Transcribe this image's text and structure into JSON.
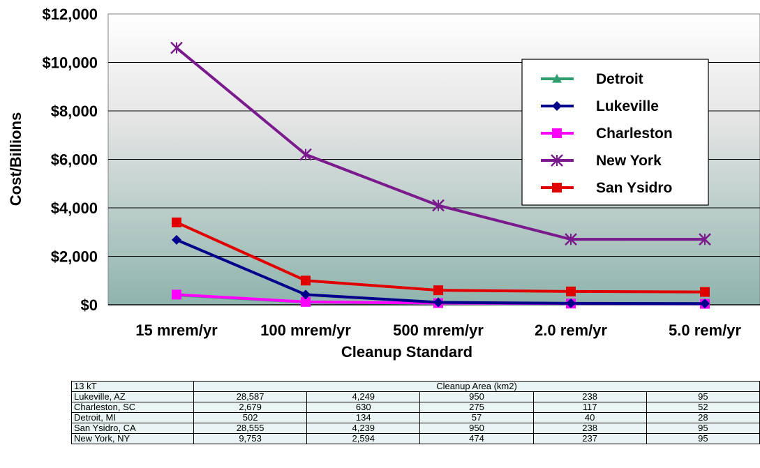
{
  "chart_data": {
    "type": "line",
    "title": "",
    "xlabel": "Cleanup Standard",
    "ylabel": "Cost/Billions",
    "ylim": [
      0,
      12000
    ],
    "yticks": [
      0,
      2000,
      4000,
      6000,
      8000,
      10000,
      12000
    ],
    "ytick_labels": [
      "$0",
      "$2,000",
      "$4,000",
      "$6,000",
      "$8,000",
      "$10,000",
      "$12,000"
    ],
    "categories": [
      "15 mrem/yr",
      "100 mrem/yr",
      "500 mrem/yr",
      "2.0 rem/yr",
      "5.0 rem/yr"
    ],
    "legend_position": "top-right",
    "grid": true,
    "series": [
      {
        "name": "Detroit",
        "color": "#2e9e6e",
        "marker": "triangle",
        "values": [
          400,
          110,
          50,
          35,
          25
        ]
      },
      {
        "name": "Lukeville",
        "color": "#00008b",
        "marker": "diamond",
        "values": [
          2680,
          420,
          100,
          60,
          50
        ]
      },
      {
        "name": "Charleston",
        "color": "#ff00ff",
        "marker": "square",
        "values": [
          420,
          120,
          70,
          50,
          40
        ]
      },
      {
        "name": "New York",
        "color": "#7a1a8c",
        "marker": "x",
        "values": [
          10600,
          6200,
          4100,
          2700,
          2700
        ]
      },
      {
        "name": "San Ysidro",
        "color": "#e00000",
        "marker": "square",
        "values": [
          3400,
          1000,
          600,
          550,
          530
        ]
      }
    ]
  },
  "table": {
    "corner": "13 kT",
    "header": "Cleanup Area (km2)",
    "rows": [
      {
        "label": "Lukeville, AZ",
        "values": [
          "28,587",
          "4,249",
          "950",
          "238",
          "95"
        ]
      },
      {
        "label": "Charleston, SC",
        "values": [
          "2,679",
          "630",
          "275",
          "117",
          "52"
        ]
      },
      {
        "label": "Detroit, MI",
        "values": [
          "502",
          "134",
          "57",
          "40",
          "28"
        ]
      },
      {
        "label": "San Ysidro, CA",
        "values": [
          "28,555",
          "4,239",
          "950",
          "238",
          "95"
        ]
      },
      {
        "label": "New York, NY",
        "values": [
          "9,753",
          "2,594",
          "474",
          "237",
          "95"
        ]
      }
    ]
  }
}
